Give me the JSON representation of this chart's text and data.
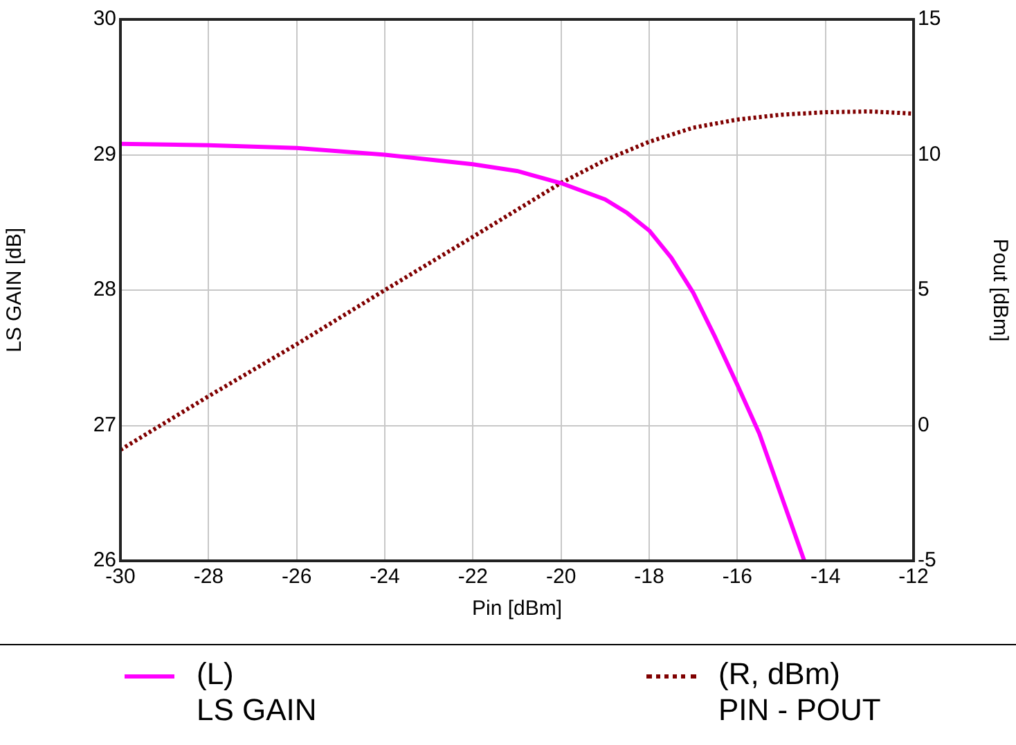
{
  "chart_data": {
    "type": "line",
    "xlabel": "Pin [dBm]",
    "ylabel": "LS GAIN [dB]",
    "y2label": "Pout [dBm]",
    "xlim": [
      -30,
      -12
    ],
    "xticks": [
      -30,
      -28,
      -26,
      -24,
      -22,
      -20,
      -18,
      -16,
      -14,
      -12
    ],
    "ylim": [
      26,
      30
    ],
    "yticks": [
      26,
      27,
      28,
      29,
      30
    ],
    "y2lim": [
      -5,
      15
    ],
    "y2ticks": [
      -5,
      0,
      5,
      10,
      15
    ],
    "grid": true,
    "legend": "bottom",
    "marker": "none",
    "series": [
      {
        "name": "(L)\nLS GAIN",
        "color": "#ff00ff",
        "line_style": "solid",
        "x": [
          -30,
          -28,
          -26,
          -24,
          -22,
          -21,
          -20,
          -19.5,
          -19,
          -18.5,
          -18,
          -17.5,
          -17,
          -16.5,
          -16,
          -15.5,
          -15,
          -14.48
        ],
        "values": [
          29.08,
          29.07,
          29.05,
          29.0,
          28.93,
          28.88,
          28.79,
          28.73,
          28.67,
          28.57,
          28.44,
          28.24,
          27.98,
          27.65,
          27.3,
          26.94,
          26.48,
          26.0
        ]
      },
      {
        "name": "(R, dBm)\nPIN - POUT",
        "color": "#800000",
        "line_style": "dotted",
        "axis": "y2",
        "x": [
          -30,
          -28,
          -26,
          -24,
          -22,
          -20,
          -19,
          -18,
          -17,
          -16,
          -15,
          -14,
          -13,
          -12
        ],
        "values": [
          -0.9,
          1.08,
          3.0,
          5.0,
          6.97,
          8.96,
          9.8,
          10.48,
          11.0,
          11.3,
          11.48,
          11.57,
          11.6,
          11.52
        ]
      }
    ]
  }
}
